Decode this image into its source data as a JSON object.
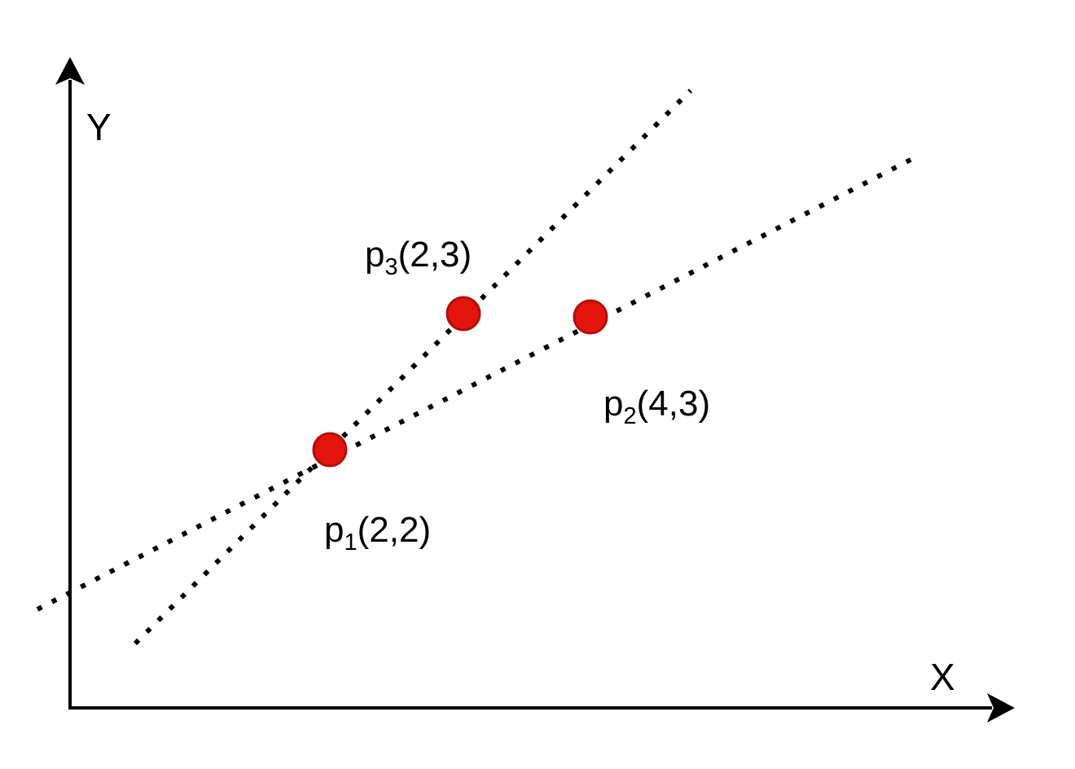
{
  "axes": {
    "x_label": "X",
    "y_label": "Y"
  },
  "points": [
    {
      "name": "p",
      "sub": "1",
      "coords": "(2,2)"
    },
    {
      "name": "p",
      "sub": "2",
      "coords": "(4,3)"
    },
    {
      "name": "p",
      "sub": "3",
      "coords": "(2,3)"
    }
  ],
  "colors": {
    "point_fill": "#e3140c",
    "point_stroke": "#b30e0a",
    "line": "#000000"
  }
}
